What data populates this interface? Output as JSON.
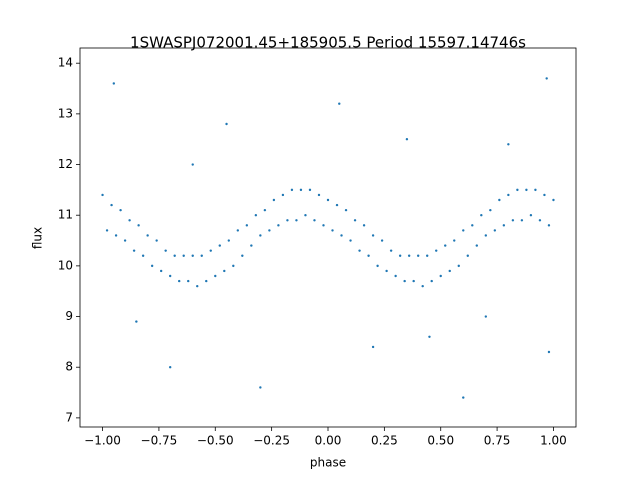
{
  "chart_data": {
    "type": "scatter",
    "title": "1SWASPJ072001.45+185905.5 Period 15597.14746s",
    "x_label": "phase",
    "y_label": "flux",
    "color": "#1f77b4",
    "x": [
      -1.0,
      -0.98,
      -0.96,
      -0.94,
      -0.92,
      -0.9,
      -0.88,
      -0.86,
      -0.84,
      -0.82,
      -0.8,
      -0.78,
      -0.76,
      -0.74,
      -0.72,
      -0.7,
      -0.68,
      -0.66,
      -0.64,
      -0.62,
      -0.6,
      -0.58,
      -0.56,
      -0.54,
      -0.52,
      -0.5,
      -0.48,
      -0.46,
      -0.44,
      -0.42,
      -0.4,
      -0.38,
      -0.36,
      -0.34,
      -0.32,
      -0.3,
      -0.28,
      -0.26,
      -0.24,
      -0.22,
      -0.2,
      -0.18,
      -0.16,
      -0.14,
      -0.12,
      -0.1,
      -0.08,
      -0.06,
      -0.04,
      -0.02,
      0.0,
      0.02,
      0.04,
      0.06,
      0.08,
      0.1,
      0.12,
      0.14,
      0.16,
      0.18,
      0.2,
      0.22,
      0.24,
      0.26,
      0.28,
      0.3,
      0.32,
      0.34,
      0.36,
      0.38,
      0.4,
      0.42,
      0.44,
      0.46,
      0.48,
      0.5,
      0.52,
      0.54,
      0.56,
      0.58,
      0.6,
      0.62,
      0.64,
      0.66,
      0.68,
      0.7,
      0.72,
      0.74,
      0.76,
      0.78,
      0.8,
      0.82,
      0.84,
      0.86,
      0.88,
      0.9,
      0.92,
      0.94,
      0.96,
      0.98,
      1.0,
      -0.95,
      -0.7,
      -0.45,
      -0.3,
      0.05,
      0.2,
      0.35,
      0.6,
      0.8,
      0.97,
      -0.85,
      0.45,
      -0.6,
      0.7,
      0.98
    ],
    "values": [
      11.4,
      10.7,
      11.2,
      10.6,
      11.1,
      10.5,
      10.9,
      10.3,
      10.8,
      10.2,
      10.6,
      10.0,
      10.5,
      9.9,
      10.3,
      9.8,
      10.2,
      9.7,
      10.2,
      9.7,
      10.2,
      9.6,
      10.2,
      9.7,
      10.3,
      9.8,
      10.4,
      9.9,
      10.5,
      10.0,
      10.7,
      10.2,
      10.8,
      10.4,
      11.0,
      10.6,
      11.1,
      10.7,
      11.3,
      10.8,
      11.4,
      10.9,
      11.5,
      10.9,
      11.5,
      11.0,
      11.5,
      10.9,
      11.4,
      10.8,
      11.3,
      10.7,
      11.2,
      10.6,
      11.1,
      10.5,
      10.9,
      10.3,
      10.8,
      10.2,
      10.6,
      10.0,
      10.5,
      9.9,
      10.3,
      9.8,
      10.2,
      9.7,
      10.2,
      9.7,
      10.2,
      9.6,
      10.2,
      9.7,
      10.3,
      9.8,
      10.4,
      9.9,
      10.5,
      10.0,
      10.7,
      10.2,
      10.8,
      10.4,
      11.0,
      10.6,
      11.1,
      10.7,
      11.3,
      10.8,
      11.4,
      10.9,
      11.5,
      10.9,
      11.5,
      11.0,
      11.5,
      10.9,
      11.4,
      10.8,
      11.3,
      13.6,
      8.0,
      12.8,
      7.6,
      13.2,
      8.4,
      12.5,
      7.4,
      12.4,
      13.7,
      8.9,
      8.6,
      12.0,
      9.0,
      8.3
    ],
    "xlim": [
      -1.1,
      1.1
    ],
    "ylim": [
      6.82,
      14.3
    ],
    "xticks": [
      {
        "value": -1,
        "label": "−1.00"
      },
      {
        "value": -0.75,
        "label": "−0.75"
      },
      {
        "value": -0.5,
        "label": "−0.50"
      },
      {
        "value": -0.25,
        "label": "−0.25"
      },
      {
        "value": 0,
        "label": "0.00"
      },
      {
        "value": 0.25,
        "label": "0.25"
      },
      {
        "value": 0.5,
        "label": "0.50"
      },
      {
        "value": 0.75,
        "label": "0.75"
      },
      {
        "value": 1,
        "label": "1.00"
      }
    ],
    "yticks": [
      7,
      8,
      9,
      10,
      11,
      12,
      13,
      14
    ]
  }
}
